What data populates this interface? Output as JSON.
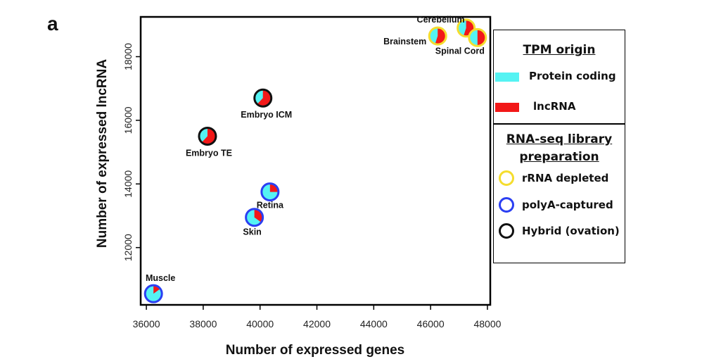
{
  "panel_label": "a",
  "chart_data": {
    "type": "scatter",
    "xlabel": "Number of expressed genes",
    "ylabel": "Number of expressed lncRNA",
    "xlim": [
      35800,
      48100
    ],
    "ylim": [
      10200,
      19250
    ],
    "xticks": [
      36000,
      38000,
      40000,
      42000,
      44000,
      46000,
      48000
    ],
    "yticks": [
      12000,
      14000,
      16000,
      18000
    ],
    "grid": false,
    "points": [
      {
        "label": "Cerebellum",
        "x": 47250,
        "y": 18900,
        "lnc_fraction": 0.55,
        "prep": "rRNA depleted"
      },
      {
        "label": "Brainstem",
        "x": 46250,
        "y": 18650,
        "lnc_fraction": 0.55,
        "prep": "rRNA depleted"
      },
      {
        "label": "Spinal Cord",
        "x": 47650,
        "y": 18600,
        "lnc_fraction": 0.5,
        "prep": "rRNA depleted"
      },
      {
        "label": "Embryo ICM",
        "x": 40100,
        "y": 16700,
        "lnc_fraction": 0.62,
        "prep": "Hybrid (ovation)"
      },
      {
        "label": "Embryo TE",
        "x": 38150,
        "y": 15500,
        "lnc_fraction": 0.62,
        "prep": "Hybrid (ovation)"
      },
      {
        "label": "Retina",
        "x": 40350,
        "y": 13750,
        "lnc_fraction": 0.25,
        "prep": "polyA-captured"
      },
      {
        "label": "Skin",
        "x": 39800,
        "y": 12950,
        "lnc_fraction": 0.35,
        "prep": "polyA-captured"
      },
      {
        "label": "Muscle",
        "x": 36250,
        "y": 10550,
        "lnc_fraction": 0.15,
        "prep": "polyA-captured"
      }
    ]
  },
  "colors": {
    "protein_coding": "#55f3f3",
    "lncrna": "#f21818",
    "rrna_depleted": "#f5dd2e",
    "polya_captured": "#2b3ff2",
    "hybrid": "#111111"
  },
  "legend_tpm": {
    "title": "TPM origin",
    "items": [
      {
        "label": "Protein coding",
        "color": "#55f3f3"
      },
      {
        "label": "lncRNA",
        "color": "#f21818"
      }
    ]
  },
  "legend_prep": {
    "title_line1": "RNA-seq library",
    "title_line2": "preparation",
    "items": [
      {
        "label": "rRNA depleted",
        "color": "#f5dd2e"
      },
      {
        "label": "polyA-captured",
        "color": "#2b3ff2"
      },
      {
        "label": "Hybrid (ovation)",
        "color": "#111111"
      }
    ]
  }
}
